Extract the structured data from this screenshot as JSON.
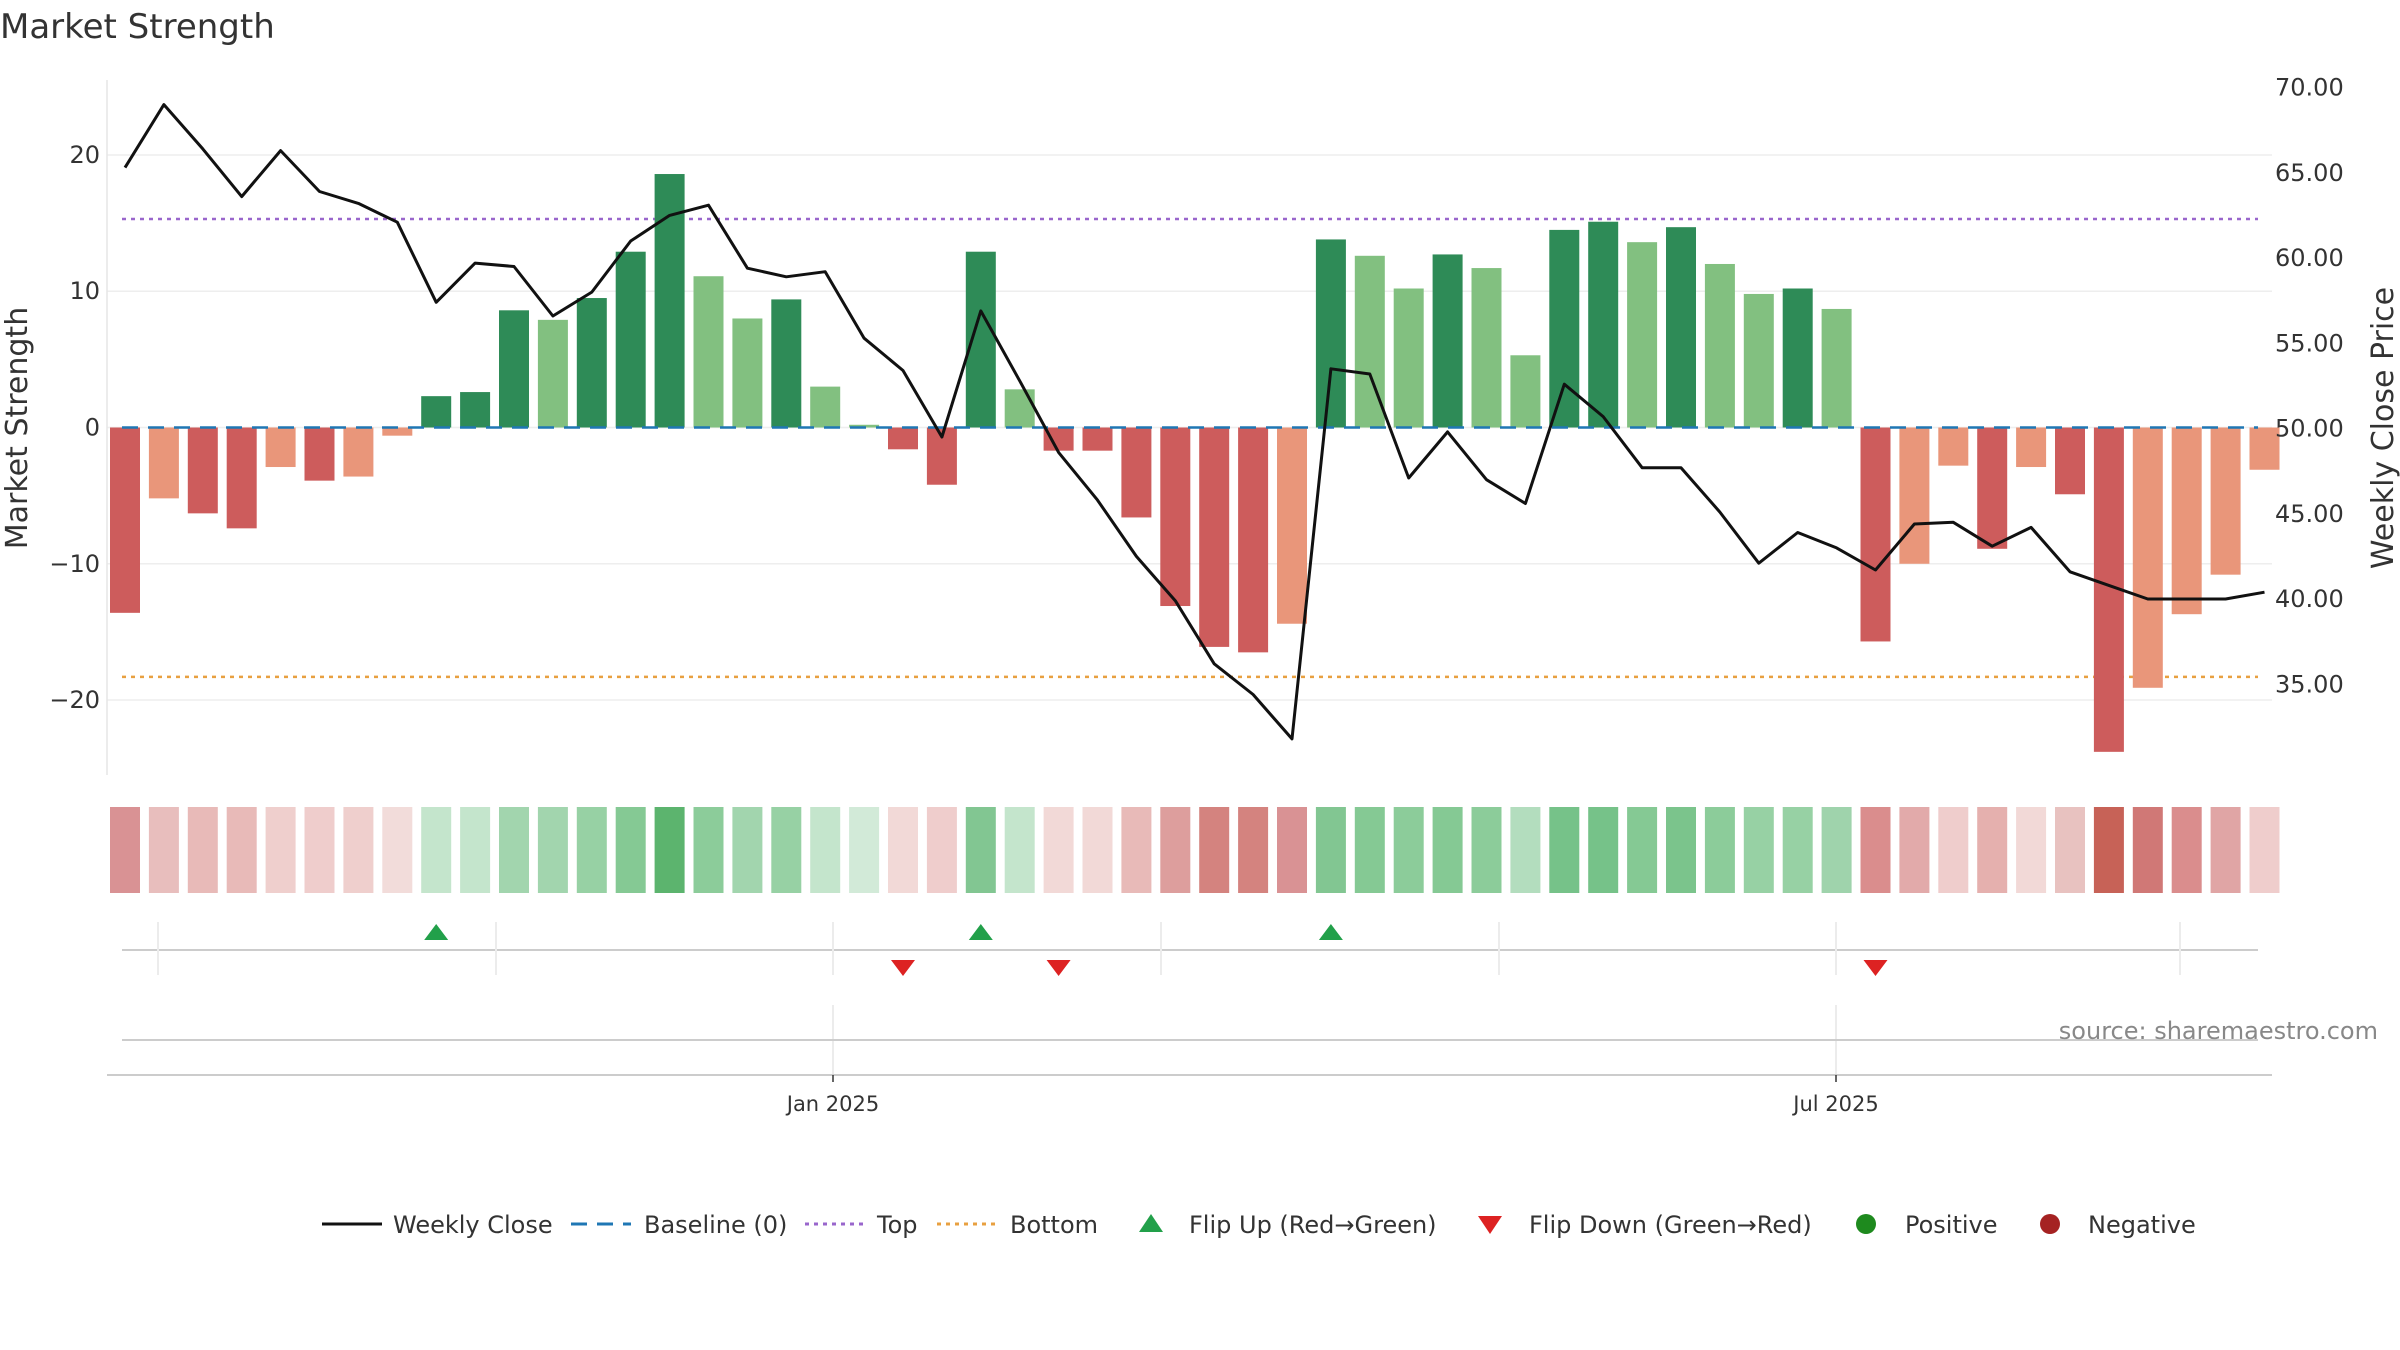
{
  "chart_data": {
    "type": "bar",
    "title": "Market Strength",
    "ylabel_left": "Market Strength",
    "ylabel_right": "Weekly Close Price",
    "left_axis": {
      "ylim": [
        -25.5,
        25.5
      ],
      "ticks": [
        20,
        10,
        0,
        -10,
        -20
      ],
      "tick_labels": [
        "20",
        "10",
        "0",
        "−10",
        "−20"
      ]
    },
    "right_axis": {
      "ylim": [
        29.68,
        70.44
      ],
      "ticks": [
        70,
        65,
        60,
        55,
        50,
        45,
        40,
        35
      ],
      "tick_labels": [
        "70.00",
        "65.00",
        "60.00",
        "55.00",
        "50.00",
        "45.00",
        "40.00",
        "35.00"
      ]
    },
    "x_ticks": [
      "Jan 2025",
      "Jul 2025"
    ],
    "legend": {
      "position": "bottom",
      "items": [
        {
          "label": "Weekly Close",
          "kind": "line"
        },
        {
          "label": "Baseline (0)",
          "kind": "dash"
        },
        {
          "label": "Top",
          "kind": "dotted-purple"
        },
        {
          "label": "Bottom",
          "kind": "dotted-orange"
        },
        {
          "label": "Flip Up (Red→Green)",
          "kind": "triangle-up"
        },
        {
          "label": "Flip Down (Green→Red)",
          "kind": "triangle-down"
        },
        {
          "label": "Positive",
          "kind": "dot-green"
        },
        {
          "label": "Negative",
          "kind": "dot-red"
        }
      ]
    },
    "annotation": "source: sharemaestro.com",
    "top_line": 15.3,
    "bottom_line": -18.3,
    "baseline": 0,
    "strength": [
      -13.6,
      -5.2,
      -6.3,
      -7.4,
      -2.9,
      -3.9,
      -3.6,
      -0.6,
      2.3,
      2.6,
      8.6,
      7.9,
      9.5,
      12.9,
      18.6,
      11.1,
      8.0,
      9.4,
      3.0,
      0.2,
      -1.6,
      -4.2,
      12.9,
      2.8,
      -1.7,
      -1.7,
      -6.6,
      -13.1,
      -16.1,
      -16.5,
      -14.4,
      13.8,
      12.6,
      10.2,
      12.7,
      11.7,
      5.3,
      14.5,
      15.1,
      13.6,
      14.7,
      12.0,
      9.8,
      10.2,
      8.7,
      -15.7,
      -10.0,
      -2.8,
      -8.9,
      -2.9,
      -4.9,
      -23.8,
      -19.1,
      -13.7,
      -10.8,
      -3.1
    ],
    "bar_colors": [
      "#cd5c5c",
      "#e9967a",
      "#cd5c5c",
      "#cd5c5c",
      "#e9967a",
      "#cd5c5c",
      "#e9967a",
      "#e9967a",
      "#2e8b57",
      "#2e8b57",
      "#2e8b57",
      "#82c080",
      "#2e8b57",
      "#2e8b57",
      "#2e8b57",
      "#82c080",
      "#82c080",
      "#2e8b57",
      "#82c080",
      "#82c080",
      "#cd5c5c",
      "#cd5c5c",
      "#2e8b57",
      "#82c080",
      "#cd5c5c",
      "#cd5c5c",
      "#cd5c5c",
      "#cd5c5c",
      "#cd5c5c",
      "#cd5c5c",
      "#e9967a",
      "#2e8b57",
      "#82c080",
      "#82c080",
      "#2e8b57",
      "#82c080",
      "#82c080",
      "#2e8b57",
      "#2e8b57",
      "#82c080",
      "#2e8b57",
      "#82c080",
      "#82c080",
      "#2e8b57",
      "#82c080",
      "#cd5c5c",
      "#e9967a",
      "#e9967a",
      "#cd5c5c",
      "#e9967a",
      "#cd5c5c",
      "#cd5c5c",
      "#e9967a",
      "#e9967a",
      "#e9967a",
      "#e9967a"
    ],
    "heat_colors": [
      "#d99294",
      "#e8bebd",
      "#e8bab8",
      "#e8bab8",
      "#efcfcd",
      "#efcdcc",
      "#efcfcd",
      "#f2dcda",
      "#c4e5cc",
      "#c4e5cc",
      "#a2d5ae",
      "#a2d5ae",
      "#97d1a4",
      "#85c994",
      "#5cb46e",
      "#8ccc9a",
      "#a2d5ae",
      "#97d1a4",
      "#c4e5cc",
      "#d2ead8",
      "#f2d9d7",
      "#efcdcc",
      "#82c692",
      "#c4e5cc",
      "#f2d9d7",
      "#f2d9d7",
      "#e8bab8",
      "#dd9e9d",
      "#d4837f",
      "#d4837f",
      "#d99294",
      "#82c692",
      "#85c994",
      "#8ccc9a",
      "#85c994",
      "#8ccc9a",
      "#b3ddbe",
      "#76c289",
      "#76c289",
      "#85c994",
      "#7bc48c",
      "#8ccc9a",
      "#97d1a4",
      "#97d1a4",
      "#9fd3ac",
      "#da8d8d",
      "#e2aaaa",
      "#efcdcc",
      "#e5b0ae",
      "#f2d9d7",
      "#e8c2c0",
      "#c76257",
      "#d07876",
      "#da8d8d",
      "#e0a5a5",
      "#efcdcc"
    ],
    "price": [
      65.3,
      69.0,
      66.4,
      63.6,
      66.3,
      63.9,
      63.2,
      62.1,
      57.4,
      59.7,
      59.5,
      56.6,
      58.0,
      61.0,
      62.5,
      63.1,
      59.4,
      58.9,
      59.2,
      55.3,
      53.4,
      49.5,
      56.9,
      52.8,
      48.6,
      45.8,
      42.5,
      39.9,
      36.2,
      34.4,
      31.8,
      53.5,
      53.2,
      47.1,
      49.8,
      47.0,
      45.6,
      52.6,
      50.7,
      47.7,
      47.7,
      45.1,
      42.1,
      43.9,
      43.0,
      41.7,
      44.4,
      44.5,
      43.1,
      44.2,
      41.6,
      40.8,
      40.0,
      40.0,
      40.0,
      40.4
    ],
    "flip_up_weeks": [
      8,
      22,
      31
    ],
    "flip_down_weeks": [
      20,
      24,
      45
    ]
  }
}
